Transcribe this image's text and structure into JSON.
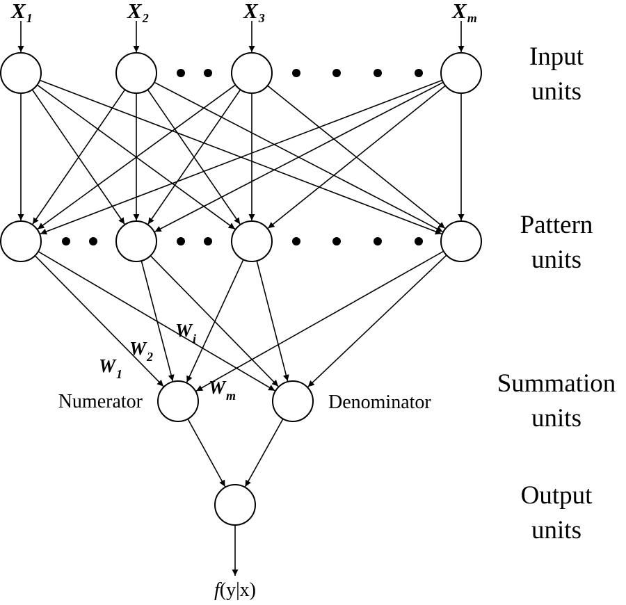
{
  "input_labels": [
    {
      "base": "X",
      "sub": "1"
    },
    {
      "base": "X",
      "sub": "2"
    },
    {
      "base": "X",
      "sub": "3"
    },
    {
      "base": "X",
      "sub": "m"
    }
  ],
  "weight_labels": [
    {
      "base": "W",
      "sub": "1"
    },
    {
      "base": "W",
      "sub": "2"
    },
    {
      "base": "W",
      "sub": "i"
    },
    {
      "base": "W",
      "sub": "m"
    }
  ],
  "layer_labels": {
    "input": [
      "Input",
      "units"
    ],
    "pattern": [
      "Pattern",
      "units"
    ],
    "summation": [
      "Summation",
      "units"
    ],
    "output": [
      "Output",
      "units"
    ]
  },
  "node_labels": {
    "numerator": "Numerator",
    "denominator": "Denominator"
  },
  "output_expression": {
    "func": "f",
    "args": "(y|x)"
  },
  "connections": {
    "input_to_pattern": "all",
    "pattern_to_summation": "all",
    "summation_to_output": "all"
  }
}
